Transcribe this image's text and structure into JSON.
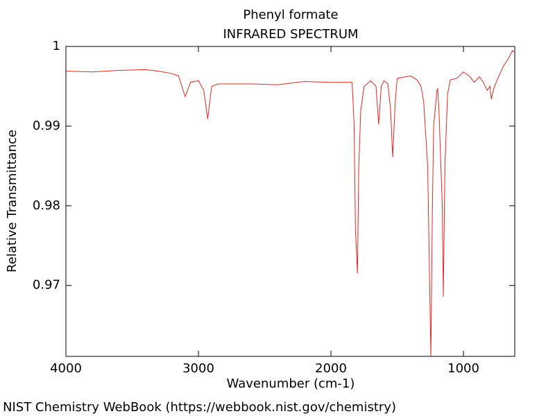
{
  "chart_data": {
    "type": "line",
    "title": "Phenyl formate",
    "subtitle": "INFRARED SPECTRUM",
    "x_label": "Wavenumber (cm-1)",
    "y_label": "Relative Transmittance",
    "footer": "NIST Chemistry WebBook (https://webbook.nist.gov/chemistry)",
    "color": "#e8251f",
    "xlim": [
      4000,
      613
    ],
    "ylim": [
      0.9611,
      1
    ],
    "xticks": [
      4000,
      3000,
      2000,
      1000
    ],
    "yticks": [
      0.97,
      0.98,
      0.99,
      1
    ],
    "x": [
      4000,
      3800,
      3600,
      3400,
      3300,
      3200,
      3150,
      3100,
      3060,
      3000,
      2960,
      2930,
      2900,
      2850,
      2600,
      2400,
      2200,
      2000,
      1850,
      1840,
      1825,
      1815,
      1800,
      1790,
      1775,
      1750,
      1700,
      1660,
      1640,
      1620,
      1600,
      1570,
      1550,
      1534,
      1515,
      1500,
      1400,
      1350,
      1320,
      1300,
      1270,
      1255,
      1246,
      1235,
      1225,
      1200,
      1194,
      1185,
      1160,
      1152,
      1140,
      1120,
      1100,
      1050,
      1000,
      950,
      920,
      880,
      850,
      820,
      800,
      790,
      770,
      740,
      700,
      660,
      630,
      615
    ],
    "values": [
      0.9969,
      0.9968,
      0.997,
      0.9971,
      0.9969,
      0.9966,
      0.9963,
      0.9937,
      0.9955,
      0.9957,
      0.9945,
      0.9909,
      0.995,
      0.9953,
      0.9953,
      0.9952,
      0.9956,
      0.9955,
      0.9955,
      0.9955,
      0.99,
      0.977,
      0.9715,
      0.985,
      0.992,
      0.995,
      0.9957,
      0.995,
      0.9902,
      0.995,
      0.9957,
      0.9953,
      0.992,
      0.9861,
      0.993,
      0.996,
      0.9963,
      0.9958,
      0.995,
      0.993,
      0.985,
      0.97,
      0.9611,
      0.979,
      0.99,
      0.9945,
      0.9947,
      0.992,
      0.98,
      0.9686,
      0.985,
      0.994,
      0.9958,
      0.996,
      0.9968,
      0.9962,
      0.9955,
      0.9962,
      0.9955,
      0.9945,
      0.995,
      0.9934,
      0.9948,
      0.996,
      0.9975,
      0.9985,
      0.9995,
      0.9993
    ]
  }
}
